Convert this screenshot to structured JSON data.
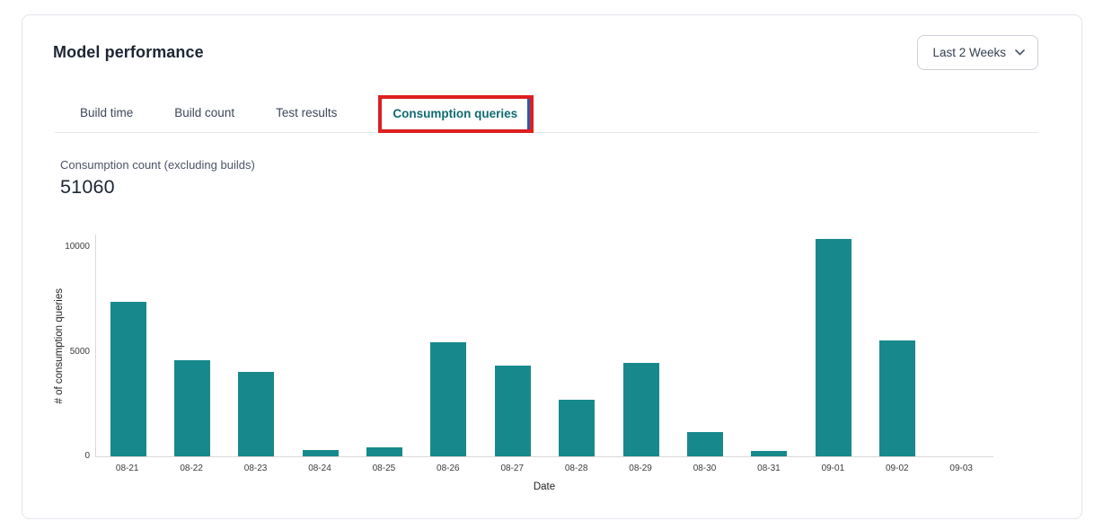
{
  "header": {
    "title": "Model performance",
    "range_selector": {
      "label": "Last 2 Weeks"
    }
  },
  "tabs": [
    {
      "label": "Build time",
      "active": false
    },
    {
      "label": "Build count",
      "active": false
    },
    {
      "label": "Test results",
      "active": false
    },
    {
      "label": "Consumption queries",
      "active": true
    }
  ],
  "annotation": {
    "box_color": "#dd1f1f",
    "focus_color": "#2d59b0",
    "target": "Consumption queries"
  },
  "metric": {
    "label": "Consumption count (excluding builds)",
    "value": "51060"
  },
  "chart_data": {
    "type": "bar",
    "title": "",
    "xlabel": "Date",
    "ylabel": "# of consumption queries",
    "categories": [
      "08-21",
      "08-22",
      "08-23",
      "08-24",
      "08-25",
      "08-26",
      "08-27",
      "08-28",
      "08-29",
      "08-30",
      "08-31",
      "09-01",
      "09-02",
      "09-03"
    ],
    "values": [
      7400,
      4600,
      4050,
      300,
      430,
      5450,
      4350,
      2700,
      4450,
      1150,
      250,
      10400,
      5530,
      0
    ],
    "yticks": [
      0,
      5000,
      10000
    ],
    "ylim": [
      0,
      10650
    ],
    "grid": false,
    "legend": false,
    "bar_color": "#17898d"
  },
  "colors": {
    "bar": "#17898d",
    "active_tab": "#0f6b70",
    "annotation_red": "#dd1f1f",
    "focus_blue": "#2d59b0",
    "card_border": "#e4e4ec"
  }
}
